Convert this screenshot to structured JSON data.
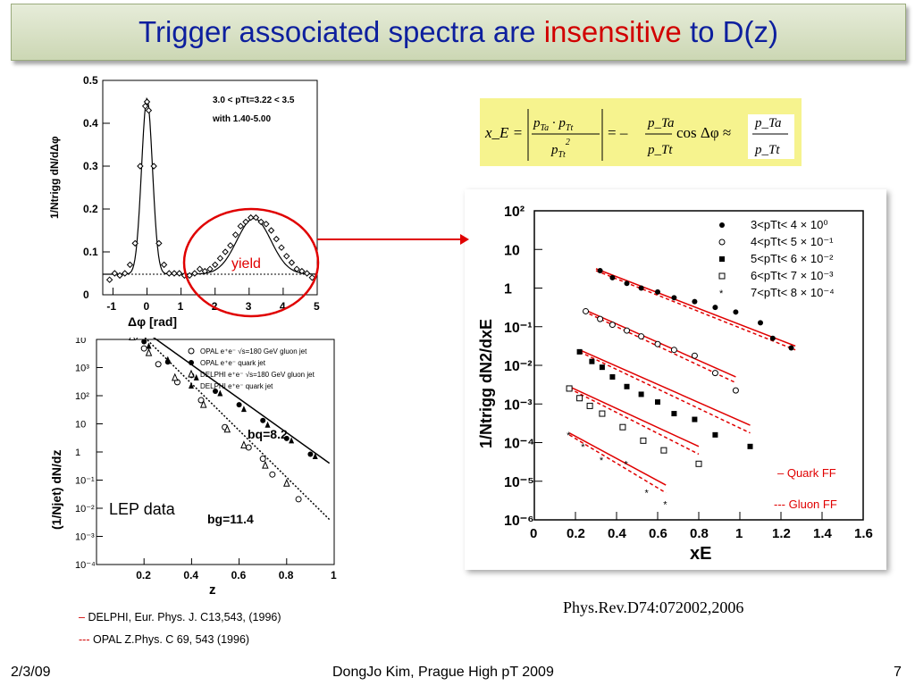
{
  "title": {
    "part1": "Trigger associated spectra are ",
    "highlight": "insensitive",
    "part2": " to D(z)"
  },
  "footer": {
    "date": "2/3/09",
    "center": "DongJo Kim, Prague High pT 2009",
    "page": "7"
  },
  "reference_publication": "Phys.Rev.D74:072002,2006",
  "references": [
    {
      "marker": "–",
      "text": "DELPHI, Eur. Phys. J. C13,543, (1996)"
    },
    {
      "marker": "---",
      "text": "OPAL Z.Phys. C 69, 543 (1996)"
    }
  ],
  "formula": {
    "lhs": "x_E =",
    "mid": "= –",
    "cos": "cos Δφ ≈",
    "num": "p_Ta",
    "den": "p_Tt"
  },
  "colors": {
    "title_blue": "#0d1f9e",
    "highlight_red": "#d10000",
    "fit_red": "#e00000",
    "formula_bg": "#f6f38e"
  },
  "chart_data": [
    {
      "type": "scatter",
      "id": "dphi",
      "annotation_lines": [
        "3.0 < pTt=3.22 < 3.5",
        "with 1.40-5.00"
      ],
      "circle_label": "yield",
      "xlabel": "Δφ  [rad]",
      "ylabel": "1/Ntrigg dN/dΔφ",
      "xlim": [
        -1.3,
        5.0
      ],
      "ylim": [
        0,
        0.5
      ],
      "xticks": [
        "-1",
        "0",
        "1",
        "2",
        "3",
        "4",
        "5"
      ],
      "yticks": [
        "0",
        "0.1",
        "0.2",
        "0.3",
        "0.4",
        "0.5"
      ],
      "baseline": 0.048,
      "x": [
        -1.1,
        -0.95,
        -0.8,
        -0.65,
        -0.5,
        -0.35,
        -0.2,
        -0.05,
        0.0,
        0.05,
        0.2,
        0.35,
        0.5,
        0.65,
        0.8,
        0.95,
        1.1,
        1.25,
        1.4,
        1.55,
        1.7,
        1.85,
        2.0,
        2.15,
        2.3,
        2.45,
        2.6,
        2.75,
        2.9,
        3.05,
        3.2,
        3.35,
        3.5,
        3.65,
        3.8,
        3.95,
        4.1,
        4.25,
        4.4,
        4.55,
        4.7,
        4.85
      ],
      "y": [
        0.035,
        0.05,
        0.045,
        0.05,
        0.07,
        0.12,
        0.3,
        0.44,
        0.45,
        0.43,
        0.3,
        0.12,
        0.07,
        0.05,
        0.05,
        0.05,
        0.045,
        0.045,
        0.05,
        0.06,
        0.055,
        0.06,
        0.07,
        0.085,
        0.1,
        0.115,
        0.14,
        0.16,
        0.17,
        0.18,
        0.18,
        0.17,
        0.165,
        0.15,
        0.13,
        0.11,
        0.09,
        0.075,
        0.06,
        0.055,
        0.05,
        0.04
      ]
    },
    {
      "type": "scatter",
      "id": "lep",
      "title": "LEP data",
      "xlabel": "z",
      "ylabel": "(1/Njet) dN/dz",
      "xlim": [
        0,
        1
      ],
      "ylim_log10": [
        -4,
        1
      ],
      "xticks": [
        "0.2",
        "0.4",
        "0.6",
        "0.8",
        "1"
      ],
      "yticks": [
        "10",
        "10³",
        "10²",
        "10",
        "1",
        "10⁻¹",
        "10⁻²",
        "10⁻³",
        "10⁻⁴"
      ],
      "annotations": [
        "bq=8.2",
        "bg=11.4"
      ],
      "legend": [
        "OPAL e⁺e⁻ √s=180 GeV gluon jet",
        "OPAL e⁺e⁻ quark jet",
        "DELPHI e⁺e⁻ √s=180 GeV gluon jet",
        "DELPHI e⁺e⁻ quark jet"
      ],
      "series": [
        {
          "name": "OPAL e⁺e⁻ √s=180 GeV gluon jet",
          "marker": "open-circle",
          "x": [
            0.02,
            0.05,
            0.08,
            0.12,
            0.16,
            0.2,
            0.26,
            0.34,
            0.44,
            0.54,
            0.64,
            0.7,
            0.74,
            0.85
          ],
          "y": [
            2.1,
            1.8,
            1.6,
            1.35,
            1.05,
            0.8,
            0.45,
            0.05,
            -0.35,
            -0.95,
            -1.4,
            -1.65,
            -2.0,
            -2.55
          ]
        },
        {
          "name": "OPAL e⁺e⁻ quark jet",
          "marker": "filled-circle",
          "x": [
            0.01,
            0.03,
            0.05,
            0.07,
            0.09,
            0.11,
            0.13,
            0.16,
            0.2,
            0.3,
            0.4,
            0.5,
            0.6,
            0.7,
            0.8,
            0.9
          ],
          "y": [
            1.95,
            1.8,
            1.6,
            1.5,
            1.4,
            1.3,
            1.2,
            1.1,
            0.95,
            0.5,
            0.2,
            -0.15,
            -0.45,
            -0.8,
            -1.2,
            -1.55
          ]
        },
        {
          "name": "DELPHI e⁺e⁻ √s=180 GeV gluon jet",
          "marker": "open-triangle",
          "x": [
            0.02,
            0.06,
            0.1,
            0.15,
            0.22,
            0.33,
            0.45,
            0.55,
            0.62,
            0.71,
            0.8
          ],
          "y": [
            2.2,
            1.7,
            1.35,
            1.05,
            0.7,
            0.15,
            -0.45,
            -1.0,
            -1.35,
            -1.8,
            -2.2
          ]
        },
        {
          "name": "DELPHI e⁺e⁻ quark jet",
          "marker": "filled-triangle",
          "x": [
            0.04,
            0.08,
            0.14,
            0.22,
            0.3,
            0.42,
            0.52,
            0.62,
            0.72,
            0.82,
            0.92
          ],
          "y": [
            1.7,
            1.4,
            1.1,
            0.85,
            0.55,
            0.15,
            -0.2,
            -0.55,
            -0.9,
            -1.25,
            -1.6
          ]
        }
      ]
    },
    {
      "type": "scatter",
      "id": "xe",
      "xlabel": "xE",
      "ylabel": "1/Ntrigg dN2/dxE",
      "xlim": [
        0,
        1.6
      ],
      "ylim_log10": [
        -6,
        2
      ],
      "xticks": [
        "0",
        "0.2",
        "0.4",
        "0.6",
        "0.8",
        "1",
        "1.2",
        "1.4",
        "1.6"
      ],
      "yticks": [
        "10²",
        "10",
        "1",
        "10⁻¹",
        "10⁻²",
        "10⁻³",
        "10⁻⁴",
        "10⁻⁵",
        "10⁻⁶"
      ],
      "fit_legend": [
        "–  Quark FF",
        "--- Gluon FF"
      ],
      "series": [
        {
          "name": "3<pTt< 4 × 10⁰",
          "marker": "filled-circle",
          "x": [
            0.32,
            0.38,
            0.45,
            0.52,
            0.6,
            0.68,
            0.78,
            0.88,
            0.98,
            1.1,
            1.16,
            1.25
          ],
          "y": [
            0.45,
            0.27,
            0.12,
            0.0,
            -0.1,
            -0.25,
            -0.35,
            -0.5,
            -0.62,
            -0.9,
            -1.3,
            -1.55
          ]
        },
        {
          "name": "4<pTt< 5 × 10⁻¹",
          "marker": "open-circle",
          "x": [
            0.25,
            0.32,
            0.38,
            0.45,
            0.52,
            0.6,
            0.68,
            0.78,
            0.88,
            0.98
          ],
          "y": [
            -0.6,
            -0.8,
            -0.95,
            -1.1,
            -1.25,
            -1.45,
            -1.6,
            -1.75,
            -2.2,
            -2.65
          ]
        },
        {
          "name": "5<pTt< 6 × 10⁻²",
          "marker": "filled-square",
          "x": [
            0.22,
            0.28,
            0.33,
            0.38,
            0.45,
            0.52,
            0.6,
            0.68,
            0.78,
            0.88,
            1.05
          ],
          "y": [
            -1.65,
            -1.9,
            -2.05,
            -2.3,
            -2.55,
            -2.75,
            -2.95,
            -3.25,
            -3.4,
            -3.8,
            -4.1
          ]
        },
        {
          "name": "6<pTt< 7 × 10⁻³",
          "marker": "open-square",
          "x": [
            0.17,
            0.22,
            0.27,
            0.33,
            0.43,
            0.53,
            0.63,
            0.8
          ],
          "y": [
            -2.6,
            -2.85,
            -3.05,
            -3.25,
            -3.6,
            -3.95,
            -4.2,
            -4.55
          ]
        },
        {
          "name": "7<pTt< 8 × 10⁻⁴",
          "marker": "star",
          "x": [
            0.17,
            0.24,
            0.33,
            0.45,
            0.55,
            0.64
          ],
          "y": [
            -3.8,
            -4.1,
            -4.45,
            -4.55,
            -5.3,
            -5.6
          ]
        }
      ]
    }
  ]
}
